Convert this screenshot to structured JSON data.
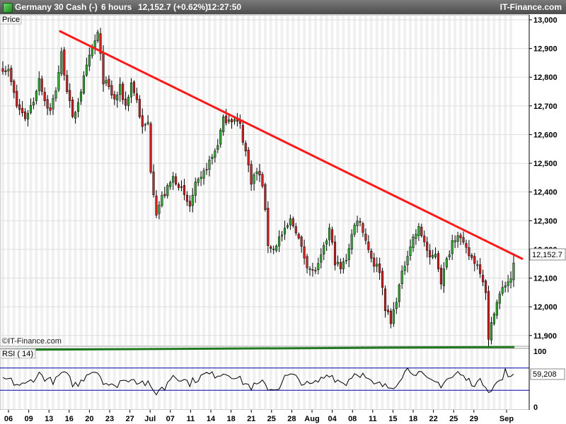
{
  "header": {
    "instrument": "Germany 30 Cash (-)",
    "timeframe": "6 hours",
    "quote": "12,152.7 (+0.62%)",
    "time": "12:27:50",
    "brand": "IT-Finance.com"
  },
  "price_panel": {
    "label": "Price",
    "last_price_label": "12,152.7",
    "watermark": "©IT-Finance.com"
  },
  "rsi_panel": {
    "label": "RSI ( 14)",
    "last_value_label": "59,208"
  },
  "colors": {
    "bull": "#33aa33",
    "bear": "#cc2222",
    "trendline": "#ff1a1a",
    "support": "#1f7a1f",
    "rsi_line": "#000000",
    "rsi_levels": "#0000aa",
    "rsi_fill": "#aaaaaa"
  },
  "chart_data": [
    {
      "type": "candlestick",
      "ylim": [
        11840,
        13020
      ],
      "yticks": [
        11900,
        12000,
        12100,
        12200,
        12300,
        12400,
        12500,
        12600,
        12700,
        12800,
        12900,
        13000
      ],
      "ytick_labels": [
        "11,900",
        "12,000",
        "12,100",
        "12,200",
        "12,300",
        "12,400",
        "12,500",
        "12,600",
        "12,700",
        "12,800",
        "12,900",
        "13,000"
      ],
      "xtick_labels": [
        "06",
        "09",
        "13",
        "16",
        "20",
        "23",
        "27",
        "Jul",
        "07",
        "11",
        "14",
        "18",
        "21",
        "25",
        "28",
        "Aug",
        "04",
        "08",
        "11",
        "15",
        "18",
        "22",
        "25",
        "29",
        "Sep"
      ],
      "anchors": [
        [
          0,
          12835
        ],
        [
          2,
          12820
        ],
        [
          5,
          12700
        ],
        [
          8,
          12660
        ],
        [
          11,
          12720
        ],
        [
          13,
          12800
        ],
        [
          15,
          12720
        ],
        [
          17,
          12680
        ],
        [
          19,
          12760
        ],
        [
          21,
          12880
        ],
        [
          23,
          12760
        ],
        [
          25,
          12650
        ],
        [
          27,
          12720
        ],
        [
          30,
          12830
        ],
        [
          32,
          12900
        ],
        [
          34,
          12950
        ],
        [
          36,
          12790
        ],
        [
          38,
          12760
        ],
        [
          40,
          12720
        ],
        [
          42,
          12760
        ],
        [
          44,
          12700
        ],
        [
          46,
          12780
        ],
        [
          48,
          12720
        ],
        [
          50,
          12620
        ],
        [
          52,
          12640
        ],
        [
          53,
          12480
        ],
        [
          55,
          12330
        ],
        [
          57,
          12380
        ],
        [
          59,
          12410
        ],
        [
          61,
          12450
        ],
        [
          63,
          12430
        ],
        [
          65,
          12380
        ],
        [
          67,
          12350
        ],
        [
          69,
          12420
        ],
        [
          71,
          12440
        ],
        [
          73,
          12490
        ],
        [
          75,
          12520
        ],
        [
          77,
          12570
        ],
        [
          79,
          12650
        ],
        [
          81,
          12660
        ],
        [
          83,
          12650
        ],
        [
          85,
          12630
        ],
        [
          87,
          12540
        ],
        [
          89,
          12440
        ],
        [
          91,
          12470
        ],
        [
          93,
          12430
        ],
        [
          95,
          12220
        ],
        [
          97,
          12200
        ],
        [
          99,
          12240
        ],
        [
          101,
          12260
        ],
        [
          103,
          12300
        ],
        [
          105,
          12270
        ],
        [
          107,
          12200
        ],
        [
          109,
          12150
        ],
        [
          111,
          12120
        ],
        [
          113,
          12140
        ],
        [
          115,
          12200
        ],
        [
          117,
          12270
        ],
        [
          119,
          12160
        ],
        [
          121,
          12130
        ],
        [
          123,
          12170
        ],
        [
          125,
          12250
        ],
        [
          127,
          12310
        ],
        [
          129,
          12270
        ],
        [
          131,
          12200
        ],
        [
          133,
          12150
        ],
        [
          135,
          12130
        ],
        [
          137,
          12000
        ],
        [
          139,
          11940
        ],
        [
          141,
          12030
        ],
        [
          143,
          12110
        ],
        [
          145,
          12190
        ],
        [
          147,
          12240
        ],
        [
          149,
          12270
        ],
        [
          151,
          12230
        ],
        [
          153,
          12160
        ],
        [
          155,
          12190
        ],
        [
          157,
          12090
        ],
        [
          159,
          12160
        ],
        [
          161,
          12230
        ],
        [
          163,
          12260
        ],
        [
          165,
          12210
        ],
        [
          167,
          12180
        ],
        [
          169,
          12160
        ],
        [
          171,
          12130
        ],
        [
          173,
          12060
        ],
        [
          174,
          11880
        ],
        [
          176,
          11990
        ],
        [
          178,
          12040
        ],
        [
          180,
          12080
        ],
        [
          182,
          12100
        ],
        [
          183,
          12152.7
        ]
      ],
      "note": "6-hour OHLC candles; interpolated between anchor closes"
    },
    {
      "type": "line",
      "name": "Trendline",
      "points": [
        [
          20.5,
          12960
        ],
        [
          183.5,
          12165
        ]
      ]
    },
    {
      "type": "line",
      "name": "Support",
      "points": [
        [
          0,
          11850
        ],
        [
          183.5,
          11860
        ]
      ]
    },
    {
      "type": "line",
      "name": "RSI (14)",
      "ylim": [
        0,
        100
      ],
      "yticks": [
        0,
        50,
        100
      ],
      "ytick_labels": [
        "0",
        "",
        "100"
      ],
      "levels": [
        70,
        30
      ]
    }
  ]
}
